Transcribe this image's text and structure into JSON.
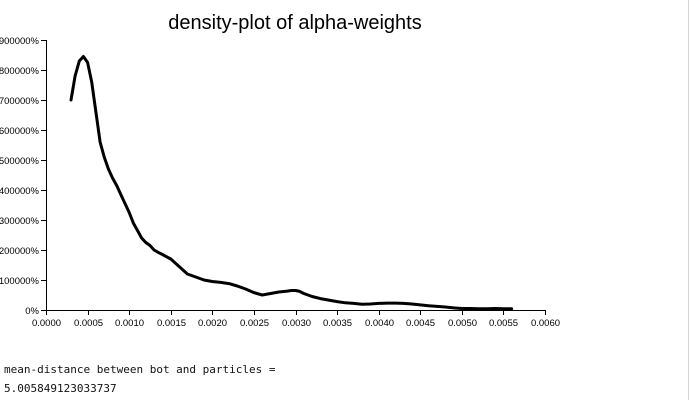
{
  "chart_data": {
    "type": "line",
    "title": "density-plot of alpha-weights",
    "xlabel": "",
    "ylabel": "",
    "xlim": [
      0,
      0.006
    ],
    "ylim": [
      0,
      9
    ],
    "x_ticks": [
      0,
      0.0005,
      0.001,
      0.0015,
      0.002,
      0.0025,
      0.003,
      0.0035,
      0.004,
      0.0045,
      0.005,
      0.0055,
      0.006
    ],
    "x_tick_labels": [
      "0.0000",
      "0.0005",
      "0.0010",
      "0.0015",
      "0.0020",
      "0.0025",
      "0.0030",
      "0.0035",
      "0.0040",
      "0.0045",
      "0.0050",
      "0.0055",
      "0.0060"
    ],
    "y_ticks": [
      0,
      1,
      2,
      3,
      4,
      5,
      6,
      7,
      8,
      9
    ],
    "y_tick_labels": [
      "0%",
      "100000%",
      "200000%",
      "300000%",
      "400000%",
      "500000%",
      "600000%",
      "700000%",
      "800000%",
      "900000%"
    ],
    "grid": false,
    "series": [
      {
        "x": [
          0.0003,
          0.00035,
          0.0004,
          0.00045,
          0.0005,
          0.00055,
          0.0006,
          0.00065,
          0.0007,
          0.00075,
          0.0008,
          0.00085,
          0.0009,
          0.00095,
          0.001,
          0.00105,
          0.0011,
          0.00115,
          0.0012,
          0.00125,
          0.0013,
          0.00135,
          0.0014,
          0.0015,
          0.0016,
          0.0017,
          0.0018,
          0.0019,
          0.002,
          0.0021,
          0.0022,
          0.0023,
          0.0024,
          0.0025,
          0.0026,
          0.0027,
          0.0028,
          0.0029,
          0.00295,
          0.003,
          0.00305,
          0.0031,
          0.0032,
          0.0033,
          0.0034,
          0.0035,
          0.0036,
          0.0037,
          0.0038,
          0.0039,
          0.004,
          0.0041,
          0.0042,
          0.0043,
          0.0044,
          0.0045,
          0.0046,
          0.0047,
          0.0048,
          0.0049,
          0.005,
          0.0051,
          0.0052,
          0.0053,
          0.0054,
          0.0055,
          0.0056
        ],
        "y": [
          7.0,
          7.8,
          8.3,
          8.45,
          8.25,
          7.6,
          6.6,
          5.6,
          5.1,
          4.7,
          4.4,
          4.15,
          3.85,
          3.55,
          3.25,
          2.9,
          2.65,
          2.4,
          2.25,
          2.15,
          2.0,
          1.92,
          1.85,
          1.7,
          1.45,
          1.2,
          1.1,
          1.0,
          0.95,
          0.92,
          0.88,
          0.8,
          0.7,
          0.58,
          0.5,
          0.55,
          0.6,
          0.63,
          0.65,
          0.65,
          0.62,
          0.55,
          0.45,
          0.38,
          0.33,
          0.28,
          0.24,
          0.22,
          0.19,
          0.2,
          0.22,
          0.23,
          0.23,
          0.22,
          0.2,
          0.17,
          0.14,
          0.12,
          0.1,
          0.07,
          0.05,
          0.05,
          0.04,
          0.04,
          0.05,
          0.04,
          0.04
        ]
      }
    ]
  },
  "output": {
    "label": "mean-distance between bot and particles =",
    "value": "5.005849123033737"
  }
}
